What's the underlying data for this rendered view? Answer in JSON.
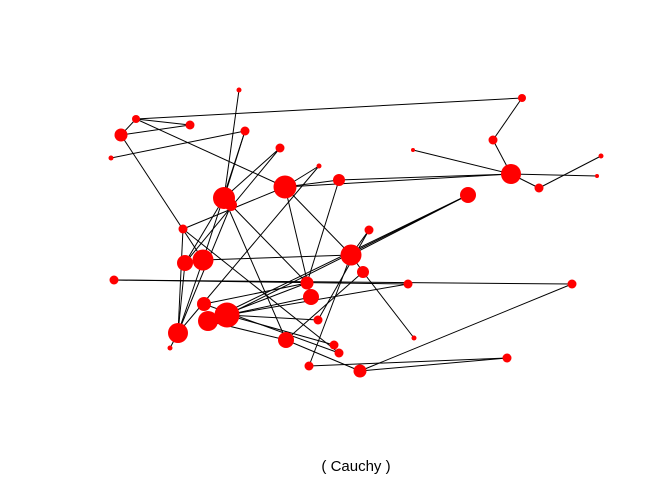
{
  "caption": "( Cauchy )",
  "colors": {
    "node": "#ff0000",
    "edge": "#000000",
    "background": "#ffffff"
  }
}
